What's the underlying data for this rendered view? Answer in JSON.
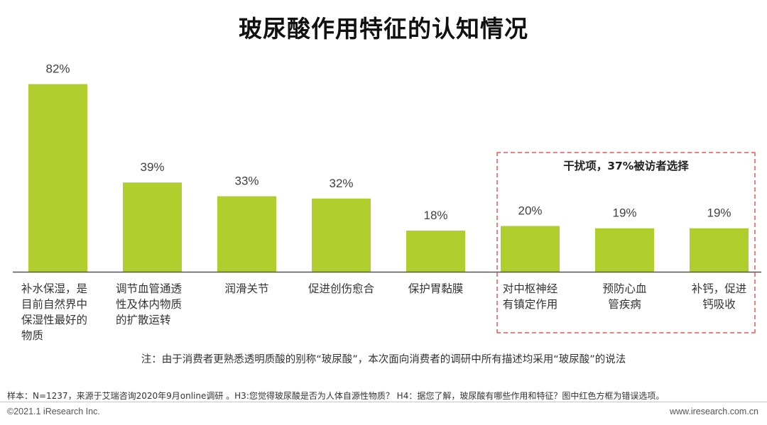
{
  "title": "玻尿酸作用特征的认知情况",
  "chart_data": {
    "type": "bar",
    "categories": [
      [
        "补水保湿，是",
        "目前自然界中",
        "保湿性最好的",
        "物质"
      ],
      [
        "调节血管通透",
        "性及体内物质",
        "的扩散运转"
      ],
      [
        "润滑关节"
      ],
      [
        "促进创伤愈合"
      ],
      [
        "保护胃黏膜"
      ],
      [
        "对中枢神经",
        "有镇定作用"
      ],
      [
        "预防心血",
        "管疾病"
      ],
      [
        "补钙，促进",
        "钙吸收"
      ]
    ],
    "values": [
      82,
      39,
      33,
      32,
      18,
      20,
      19,
      19
    ],
    "value_labels": [
      "82%",
      "39%",
      "33%",
      "32%",
      "18%",
      "20%",
      "19%",
      "19%"
    ],
    "unit": "%",
    "ylim": [
      0,
      90
    ],
    "bar_color": "#b0cf2f",
    "grid": false,
    "axis_color": "#555555"
  },
  "distractor": {
    "label": "干扰项，37%被访者选择",
    "border_color": "#ee7f7f"
  },
  "note": "注：由于消费者更熟悉透明质酸的别称“玻尿酸”，本次面向消费者的调研中所有描述均采用“玻尿酸”的说法",
  "sample": "样本：N=1237，来源于艾瑞咨询2020年9月online调研 。H3:您觉得玻尿酸是否为人体自源性物质？ H4：据您了解，玻尿酸有哪些作用和特征？图中红色方框为错误选项。",
  "copyright": "©2021.1 iResearch Inc.",
  "website": "www.iresearch.com.cn"
}
